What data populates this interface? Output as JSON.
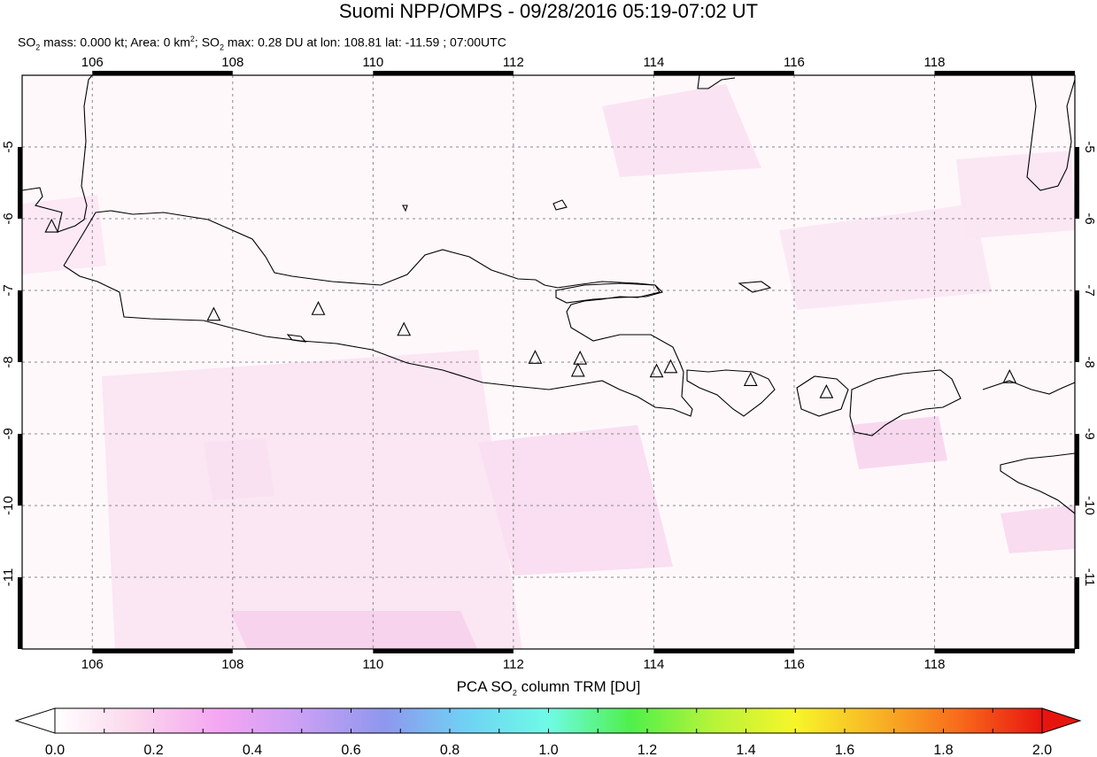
{
  "header": {
    "title": "Suomi NPP/OMPS - 09/28/2016 05:19-07:02 UT",
    "so2_mass": "0.000 kt",
    "area": "0 km",
    "so2_max": "0.28 DU",
    "lon": "108.81",
    "lat": "-11.59",
    "time": "07:00UTC"
  },
  "map": {
    "lon_range": [
      105,
      120
    ],
    "lat_range": [
      -12,
      -4
    ],
    "lon_ticks": [
      "106",
      "108",
      "110",
      "112",
      "114",
      "116",
      "118"
    ],
    "lat_ticks": [
      "-5",
      "-6",
      "-7",
      "-8",
      "-9",
      "-10",
      "-11"
    ],
    "volcanoes": [
      {
        "lon": 105.42,
        "lat": -6.1
      },
      {
        "lon": 107.73,
        "lat": -7.33
      },
      {
        "lon": 109.22,
        "lat": -7.25
      },
      {
        "lon": 110.44,
        "lat": -7.54
      },
      {
        "lon": 112.31,
        "lat": -7.93
      },
      {
        "lon": 112.95,
        "lat": -7.94
      },
      {
        "lon": 112.92,
        "lat": -8.11
      },
      {
        "lon": 114.04,
        "lat": -8.12
      },
      {
        "lon": 114.24,
        "lat": -8.06
      },
      {
        "lon": 115.38,
        "lat": -8.24
      },
      {
        "lon": 116.46,
        "lat": -8.41
      },
      {
        "lon": 119.07,
        "lat": -8.2
      }
    ],
    "grid_color": "#888888"
  },
  "colorbar": {
    "label": "PCA SO",
    "label_suffix": " column TRM [DU]",
    "ticks": [
      "0.0",
      "0.2",
      "0.4",
      "0.6",
      "0.8",
      "1.0",
      "1.2",
      "1.4",
      "1.6",
      "1.8",
      "2.0"
    ],
    "colors": [
      "#ffffff",
      "#fbd5ec",
      "#f4a6f2",
      "#c9a0f5",
      "#8f97ee",
      "#6fd2f5",
      "#6ffbe6",
      "#4ff04a",
      "#b7f43a",
      "#f7f52a",
      "#f8b425",
      "#f86a1b",
      "#e8150f"
    ]
  }
}
